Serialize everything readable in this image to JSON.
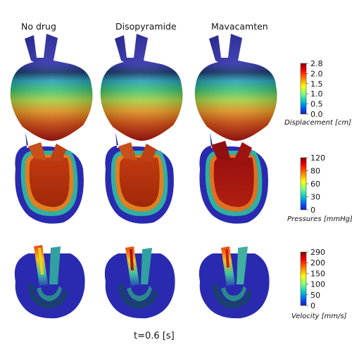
{
  "columns": [
    {
      "label": "No drug"
    },
    {
      "label": "Disopyramide"
    },
    {
      "label": "Mavacamten"
    }
  ],
  "rows": [
    {
      "quantity": "displacement",
      "colorbar": {
        "label": "Displacement [cm]",
        "ticks": [
          "2.8",
          "2.0",
          "1.5",
          "1.0",
          "0.5",
          "0.0"
        ],
        "colors": [
          "#800000",
          "#ff0000",
          "#ff8000",
          "#ffff00",
          "#80ff80",
          "#00c8c8",
          "#0050ff",
          "#2020a0"
        ]
      }
    },
    {
      "quantity": "pressure",
      "colorbar": {
        "label": "Pressures [mmHg]",
        "ticks": [
          "120",
          "80",
          "60",
          "30",
          "0"
        ],
        "colors": [
          "#800000",
          "#ff0000",
          "#ff8000",
          "#ffff00",
          "#80ff80",
          "#00c8c8",
          "#0050ff",
          "#2020a0"
        ]
      }
    },
    {
      "quantity": "velocity",
      "colorbar": {
        "label": "Velocity [mm/s]",
        "ticks": [
          "290",
          "200",
          "150",
          "100",
          "50",
          "0"
        ],
        "colors": [
          "#800000",
          "#ff0000",
          "#ff8000",
          "#ffff00",
          "#80ff80",
          "#00c8c8",
          "#0050ff",
          "#2020a0"
        ]
      }
    }
  ],
  "time_label": "t=0.6 [s]"
}
